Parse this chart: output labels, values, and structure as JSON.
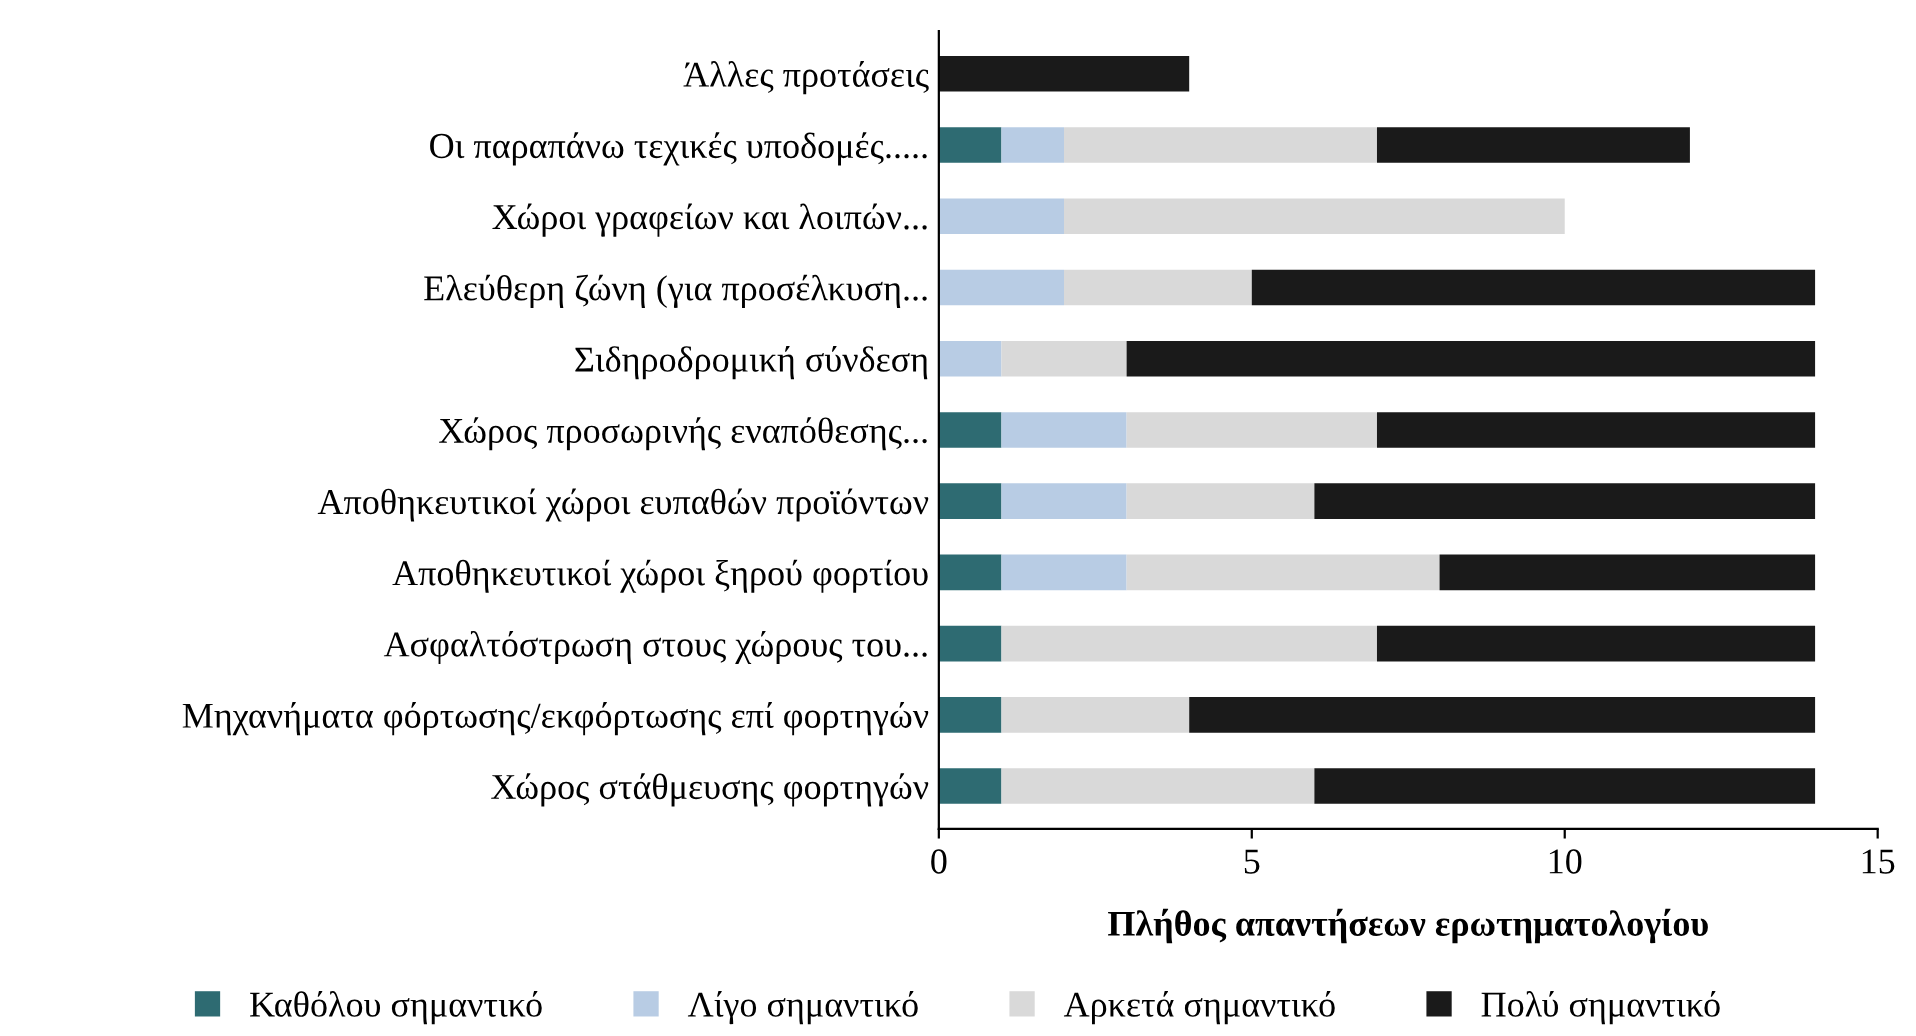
{
  "chart_data": {
    "type": "bar",
    "orientation": "horizontal",
    "stacked": true,
    "xlabel": "Πλήθος απαντήσεων ερωτηματολογίου",
    "categories": [
      "Άλλες προτάσεις",
      "Οι παραπάνω τεχικές υποδομές.....",
      "Χώροι γραφείων και λοιπών...",
      "Ελεύθερη ζώνη (για προσέλκυση...",
      "Σιδηροδρομική σύνδεση",
      "Χώρος προσωρινής εναπόθεσης...",
      "Αποθηκευτικοί χώροι ευπαθών προϊόντων",
      "Αποθηκευτικοί χώροι ξηρού φορτίου",
      "Ασφαλτόστρωση στους χώρους του...",
      "Μηχανήματα φόρτωσης/εκφόρτωσης επί φορτηγών",
      "Χώρος στάθμευσης φορτηγών"
    ],
    "series": [
      {
        "name": "Καθόλου σημαντικό",
        "color": "#2e6b72",
        "values": [
          0,
          1,
          0,
          0,
          0,
          1,
          1,
          1,
          1,
          1,
          1
        ]
      },
      {
        "name": "Λίγο σημαντικό",
        "color": "#b8cce4",
        "values": [
          0,
          1,
          2,
          2,
          1,
          2,
          2,
          2,
          0,
          0,
          0
        ]
      },
      {
        "name": "Αρκετά σημαντικό",
        "color": "#d9d9d9",
        "values": [
          0,
          5,
          8,
          3,
          2,
          4,
          3,
          5,
          6,
          3,
          5
        ]
      },
      {
        "name": "Πολύ σημαντικό",
        "color": "#1a1a1a",
        "values": [
          4,
          5,
          0,
          9,
          11,
          7,
          8,
          6,
          7,
          10,
          8
        ]
      }
    ],
    "xlim": [
      0,
      15
    ],
    "xticks": [
      0,
      5,
      10,
      15
    ],
    "grid": false,
    "legend": "bottom"
  }
}
